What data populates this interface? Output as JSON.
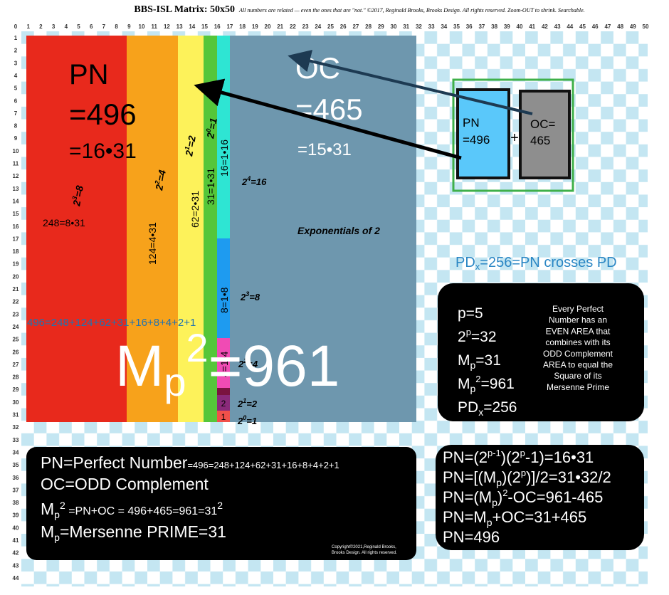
{
  "header": {
    "title": "BBS-ISL Matrix: 50x50",
    "subtitle": "All numbers are related — even the ones that are \"not.\" ©2017, Reginald Brooks, Brooks Design. All rights reserved. Zoom-OUT to shrink. Searchable."
  },
  "grid": {
    "columns": [
      0,
      1,
      2,
      3,
      4,
      5,
      6,
      7,
      8,
      9,
      10,
      11,
      12,
      13,
      14,
      15,
      16,
      17,
      18,
      19,
      20,
      21,
      22,
      23,
      24,
      25,
      26,
      27,
      28,
      29,
      30,
      31,
      32,
      33,
      34,
      35,
      36,
      37,
      38,
      39,
      40,
      41,
      42,
      43,
      44,
      45,
      46,
      47,
      48,
      49,
      50
    ],
    "rows": [
      1,
      2,
      3,
      4,
      5,
      6,
      7,
      8,
      9,
      10,
      11,
      12,
      13,
      14,
      15,
      16,
      17,
      18,
      19,
      20,
      21,
      22,
      23,
      24,
      25,
      26,
      27,
      28,
      29,
      30,
      31,
      32,
      33,
      34,
      35,
      36,
      37,
      38,
      39,
      40,
      41,
      42,
      43,
      44
    ]
  },
  "labels": {
    "pn_title": "PN",
    "pn_value": "=496",
    "pn_factor": "=16•31",
    "oc_title": "OC",
    "oc_value": "=465",
    "oc_factor": "=15•31",
    "red_exp": [
      "2",
      "3",
      "=8"
    ],
    "red_area": "248=8•31",
    "orange_exp": [
      "2",
      "2",
      "=4"
    ],
    "orange_area": "124=4•31",
    "yellow_exp": [
      "2",
      "1",
      "=2"
    ],
    "yellow_area": "62=2•31",
    "green_exp": [
      "2",
      "0",
      "=1"
    ],
    "green_area": "31=1•31",
    "cyan_areas": [
      "16=1•16",
      "8=1•8",
      "4=1•4",
      "2",
      "1"
    ],
    "gray_exps": [
      [
        "2",
        "4",
        "=16"
      ],
      [
        "2",
        "3",
        "=8"
      ],
      [
        "2",
        "2",
        "=4"
      ],
      [
        "2",
        "1",
        "=2"
      ],
      [
        "2",
        "0",
        "=1"
      ]
    ],
    "caption": "Exponentials of 2",
    "sum": "496=248+124+62+31+16+8+4+2+1",
    "square": [
      "M",
      "p",
      "2",
      "=961"
    ]
  },
  "inset": {
    "pn": [
      "PN",
      "=496"
    ],
    "plus": "+",
    "oc": [
      "OC=",
      "465"
    ]
  },
  "crossing": [
    "PD",
    "x",
    "=256=PN crosses PD"
  ],
  "facts": {
    "lines": [
      [
        "p=5"
      ],
      [
        "2",
        "p",
        "=32"
      ],
      [
        "M",
        "p",
        "=31"
      ],
      [
        "M",
        "p",
        "2",
        "=961"
      ],
      [
        "PD",
        "x",
        "=256"
      ]
    ],
    "note": [
      "Every Perfect",
      "Number has an",
      "EVEN AREA that",
      "combines with its",
      "ODD Complement",
      "AREA to equal the",
      "Square of its",
      "Mersenne Prime"
    ]
  },
  "legend": {
    "lines": [
      [
        "PN=Perfect Number",
        "=496=248+124+62+31+16+8+4+2+1"
      ],
      [
        "OC=ODD Complement"
      ],
      [
        "M",
        "p",
        "2",
        " =PN+OC = 496+465=961=31",
        "2"
      ],
      [
        "M",
        "p",
        "=Mersenne PRIME=31"
      ]
    ],
    "copyright": [
      "Copyright©2021,Reginald Brooks,",
      "Brooks Design. All rights reserved."
    ]
  },
  "formulas": [
    [
      "PN=(2",
      "p-1",
      ")(2",
      "p",
      "-1)=16•31"
    ],
    [
      "PN=[(M",
      "p",
      ")(2",
      "p",
      ")]/2=31•32/2"
    ],
    [
      "PN=(M",
      "p",
      ")",
      "2",
      "-OC=961-465"
    ],
    [
      "PN=M",
      "p",
      "+OC=31+465"
    ],
    [
      "PN=496"
    ]
  ]
}
